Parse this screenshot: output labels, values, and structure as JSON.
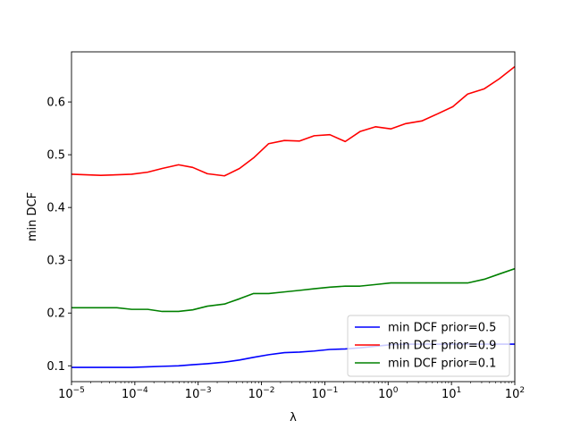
{
  "chart_data": {
    "type": "line",
    "title": "",
    "xlabel": "λ",
    "ylabel": "min DCF",
    "xscale": "log",
    "xlim": [
      1e-05,
      100
    ],
    "ylim": [
      0.07,
      0.695
    ],
    "x_ticks": [
      1e-05,
      0.0001,
      0.001,
      0.01,
      0.1,
      1,
      10,
      100
    ],
    "x_tick_labels": [
      {
        "base": "10",
        "exp": "−5"
      },
      {
        "base": "10",
        "exp": "−4"
      },
      {
        "base": "10",
        "exp": "−3"
      },
      {
        "base": "10",
        "exp": "−2"
      },
      {
        "base": "10",
        "exp": "−1"
      },
      {
        "base": "10",
        "exp": "0"
      },
      {
        "base": "10",
        "exp": "1"
      },
      {
        "base": "10",
        "exp": "2"
      }
    ],
    "y_ticks": [
      0.1,
      0.2,
      0.3,
      0.4,
      0.5,
      0.6
    ],
    "y_tick_labels": [
      "0.1",
      "0.2",
      "0.3",
      "0.4",
      "0.5",
      "0.6"
    ],
    "x": [
      1e-05,
      1.7e-05,
      2.9e-05,
      5.2e-05,
      8.9e-05,
      0.00016,
      0.00027,
      0.00049,
      0.00082,
      0.0014,
      0.0026,
      0.0045,
      0.0075,
      0.013,
      0.023,
      0.04,
      0.068,
      0.12,
      0.21,
      0.36,
      0.63,
      1.1,
      1.9,
      3.4,
      5.9,
      10.5,
      18,
      33,
      57,
      100
    ],
    "series": [
      {
        "name": "min DCF prior=0.5",
        "color": "#0000ff",
        "values": [
          0.097,
          0.097,
          0.097,
          0.097,
          0.097,
          0.098,
          0.099,
          0.1,
          0.102,
          0.104,
          0.107,
          0.111,
          0.116,
          0.121,
          0.125,
          0.126,
          0.128,
          0.131,
          0.132,
          0.134,
          0.137,
          0.14,
          0.141,
          0.141,
          0.141,
          0.141,
          0.141,
          0.141,
          0.141,
          0.141
        ]
      },
      {
        "name": "min DCF prior=0.9",
        "color": "#ff0000",
        "values": [
          0.463,
          0.462,
          0.461,
          0.462,
          0.463,
          0.467,
          0.474,
          0.481,
          0.476,
          0.464,
          0.46,
          0.474,
          0.494,
          0.521,
          0.527,
          0.526,
          0.536,
          0.538,
          0.525,
          0.544,
          0.553,
          0.549,
          0.559,
          0.564,
          0.577,
          0.591,
          0.615,
          0.625,
          0.644,
          0.667
        ]
      },
      {
        "name": "min DCF prior=0.1",
        "color": "#008000",
        "values": [
          0.21,
          0.21,
          0.21,
          0.21,
          0.207,
          0.207,
          0.203,
          0.203,
          0.206,
          0.213,
          0.217,
          0.227,
          0.237,
          0.237,
          0.24,
          0.243,
          0.246,
          0.249,
          0.251,
          0.251,
          0.254,
          0.257,
          0.257,
          0.257,
          0.257,
          0.257,
          0.257,
          0.264,
          0.274,
          0.284
        ]
      }
    ],
    "legend": {
      "placement": "lower-right",
      "entries": [
        "min DCF prior=0.5",
        "min DCF prior=0.9",
        "min DCF prior=0.1"
      ]
    },
    "grid": false
  }
}
